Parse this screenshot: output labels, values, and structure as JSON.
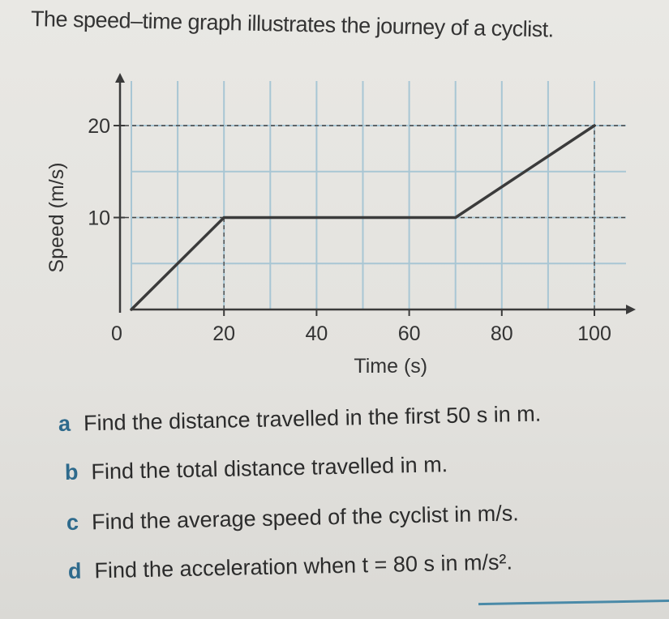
{
  "page": {
    "title": "The speed–time graph illustrates the journey of a cyclist."
  },
  "chart_data": {
    "type": "line",
    "xlabel": "Time (s)",
    "ylabel": "Speed (m/s)",
    "xlim": [
      0,
      110
    ],
    "ylim": [
      0,
      25
    ],
    "x_ticks": [
      0,
      20,
      40,
      60,
      80,
      100
    ],
    "x_tick_labels": [
      "0",
      "20",
      "40",
      "60",
      "80",
      "100"
    ],
    "y_ticks": [
      10,
      20
    ],
    "y_tick_labels": [
      "10",
      "20"
    ],
    "grid": true,
    "series": [
      {
        "x": [
          0,
          20,
          70,
          100
        ],
        "y": [
          0,
          10,
          10,
          20
        ]
      }
    ],
    "dashed_guides": [
      {
        "axis": "y",
        "value": 20
      },
      {
        "axis": "y",
        "value": 10
      },
      {
        "axis": "x",
        "value": 20
      },
      {
        "axis": "x",
        "value": 100
      }
    ]
  },
  "questions": [
    {
      "letter": "a",
      "text": "Find the distance travelled in the first 50 s in m."
    },
    {
      "letter": "b",
      "text": "Find the total distance travelled in m."
    },
    {
      "letter": "c",
      "text": "Find the average speed of the cyclist in m/s."
    },
    {
      "letter": "d",
      "text": "Find the acceleration when t = 80 s in m/s²."
    }
  ],
  "colors": {
    "line": "#3b3b3b",
    "grid": "#a8c6d4",
    "axis": "#3a3a3a",
    "question_letter": "#2e6a8c"
  }
}
